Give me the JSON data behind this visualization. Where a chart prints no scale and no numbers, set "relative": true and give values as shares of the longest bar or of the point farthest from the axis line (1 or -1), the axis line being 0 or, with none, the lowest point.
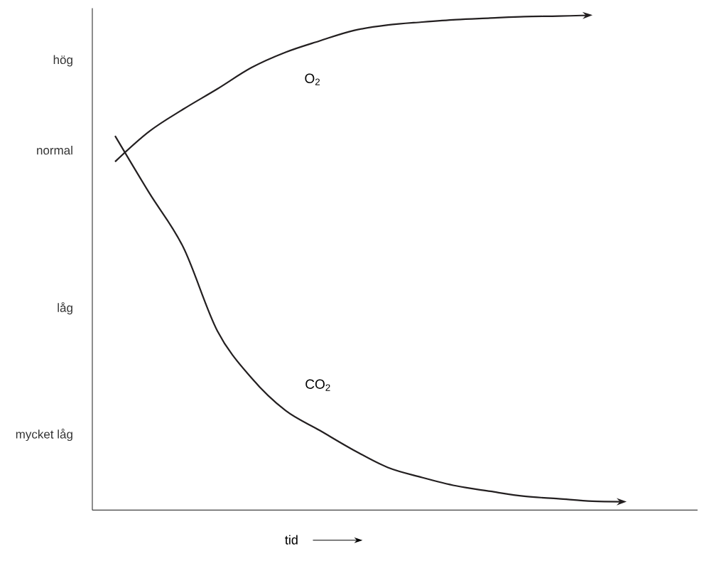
{
  "chart_data": {
    "type": "line",
    "xlabel": "tid",
    "relative": true,
    "categories": [
      null,
      null,
      null,
      null,
      null,
      null,
      null,
      null,
      null,
      null,
      null,
      null,
      null,
      null,
      null,
      null
    ],
    "series": [
      {
        "name": "O$_{2}$",
        "color": "#231f20",
        "values": [
          0.704,
          0.765,
          0.81,
          0.851,
          0.894,
          0.925,
          0.948,
          0.969,
          0.98,
          0.986,
          0.991,
          0.994,
          0.997,
          0.998,
          1,
          null
        ]
      },
      {
        "name": "CO$_{2}$",
        "color": "#231f20",
        "values": [
          0.756,
          0.641,
          0.531,
          0.362,
          0.267,
          0.201,
          0.161,
          0.121,
          0.086,
          0.066,
          0.049,
          0.038,
          0.028,
          0.023,
          0.018,
          0.017
        ]
      }
    ],
    "annotations": [
      "hög",
      "normal",
      "låg",
      "mycket låg"
    ],
    "legend": false,
    "marker": "none",
    "line_style": "solid"
  }
}
